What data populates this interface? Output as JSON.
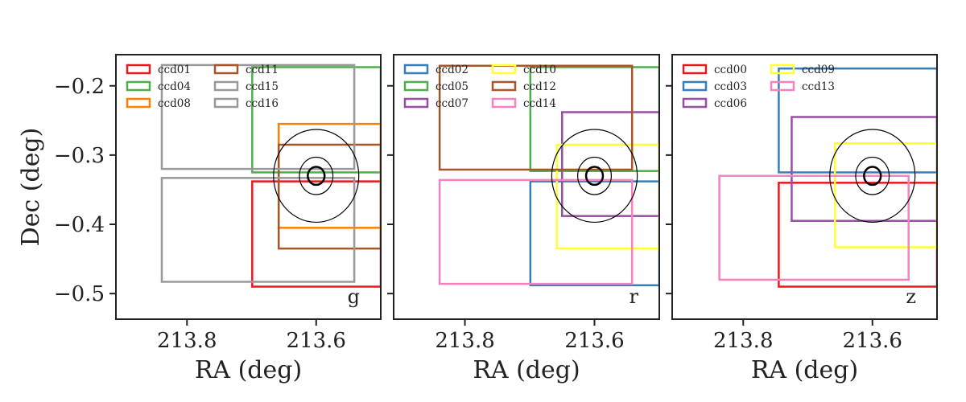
{
  "chart_data": [
    {
      "type": "scatter",
      "panel": "g",
      "band_label": "g",
      "xlabel": "RA (deg)",
      "ylabel": "Dec (deg)",
      "xlim": [
        213.91,
        213.5
      ],
      "ylim": [
        -0.537,
        -0.155
      ],
      "x_ticks": [
        213.8,
        213.6
      ],
      "x_tick_labels": [
        "213.8",
        "213.6"
      ],
      "y_ticks": [
        -0.2,
        -0.3,
        -0.4,
        -0.5
      ],
      "y_tick_labels": [
        "−0.2",
        "−0.3",
        "−0.4",
        "−0.5"
      ],
      "legend_columns": 2,
      "legend_position": "upper-left",
      "ccds": [
        {
          "name": "ccd01",
          "color": "#e41a1c",
          "ra": [
            213.5,
            213.699
          ],
          "dec": [
            -0.49,
            -0.338
          ]
        },
        {
          "name": "ccd04",
          "color": "#4daf4a",
          "ra": [
            213.5,
            213.699
          ],
          "dec": [
            -0.325,
            -0.173
          ]
        },
        {
          "name": "ccd08",
          "color": "#ff7f00",
          "ra": [
            213.5,
            213.658
          ],
          "dec": [
            -0.405,
            -0.255
          ]
        },
        {
          "name": "ccd11",
          "color": "#a65628",
          "ra": [
            213.5,
            213.658
          ],
          "dec": [
            -0.435,
            -0.285
          ]
        },
        {
          "name": "ccd15",
          "color": "#999999",
          "ra": [
            213.541,
            213.839
          ],
          "dec": [
            -0.32,
            -0.17
          ]
        },
        {
          "name": "ccd16",
          "color": "#999999",
          "ra": [
            213.541,
            213.839
          ],
          "dec": [
            -0.483,
            -0.333
          ]
        }
      ],
      "circles": [
        {
          "ra": 213.6,
          "dec": -0.33,
          "r_ra": 0.066,
          "r_dec": 0.067
        },
        {
          "ra": 213.6,
          "dec": -0.33,
          "r_ra": 0.026,
          "r_dec": 0.027
        },
        {
          "ra": 213.6,
          "dec": -0.33,
          "r_ra": 0.013,
          "r_dec": 0.013
        }
      ]
    },
    {
      "type": "scatter",
      "panel": "r",
      "band_label": "r",
      "xlabel": "RA (deg)",
      "ylabel": "",
      "xlim": [
        213.91,
        213.5
      ],
      "ylim": [
        -0.537,
        -0.155
      ],
      "x_ticks": [
        213.8,
        213.6
      ],
      "x_tick_labels": [
        "213.8",
        "213.6"
      ],
      "y_ticks": [
        -0.2,
        -0.3,
        -0.4,
        -0.5
      ],
      "y_tick_labels": [],
      "legend_columns": 2,
      "legend_position": "upper-left",
      "ccds": [
        {
          "name": "ccd02",
          "color": "#377eb8",
          "ra": [
            213.5,
            213.699
          ],
          "dec": [
            -0.488,
            -0.338
          ]
        },
        {
          "name": "ccd05",
          "color": "#4daf4a",
          "ra": [
            213.5,
            213.699
          ],
          "dec": [
            -0.323,
            -0.173
          ]
        },
        {
          "name": "ccd07",
          "color": "#984ea3",
          "ra": [
            213.5,
            213.65
          ],
          "dec": [
            -0.388,
            -0.238
          ]
        },
        {
          "name": "ccd10",
          "color": "#ffff33",
          "ra": [
            213.5,
            213.658
          ],
          "dec": [
            -0.435,
            -0.285
          ]
        },
        {
          "name": "ccd12",
          "color": "#a65628",
          "ra": [
            213.542,
            213.839
          ],
          "dec": [
            -0.321,
            -0.171
          ]
        },
        {
          "name": "ccd14",
          "color": "#f781bf",
          "ra": [
            213.542,
            213.839
          ],
          "dec": [
            -0.486,
            -0.336
          ]
        }
      ],
      "circles": [
        {
          "ra": 213.6,
          "dec": -0.33,
          "r_ra": 0.066,
          "r_dec": 0.067
        },
        {
          "ra": 213.6,
          "dec": -0.33,
          "r_ra": 0.026,
          "r_dec": 0.027
        },
        {
          "ra": 213.6,
          "dec": -0.33,
          "r_ra": 0.013,
          "r_dec": 0.013
        }
      ]
    },
    {
      "type": "scatter",
      "panel": "z",
      "band_label": "z",
      "xlabel": "RA (deg)",
      "ylabel": "",
      "xlim": [
        213.91,
        213.5
      ],
      "ylim": [
        -0.537,
        -0.155
      ],
      "x_ticks": [
        213.8,
        213.6
      ],
      "x_tick_labels": [
        "213.8",
        "213.6"
      ],
      "y_ticks": [
        -0.2,
        -0.3,
        -0.4,
        -0.5
      ],
      "y_tick_labels": [],
      "legend_columns": 2,
      "legend_position": "upper-left",
      "ccds": [
        {
          "name": "ccd00",
          "color": "#e41a1c",
          "ra": [
            213.5,
            213.745
          ],
          "dec": [
            -0.49,
            -0.34
          ]
        },
        {
          "name": "ccd03",
          "color": "#377eb8",
          "ra": [
            213.5,
            213.745
          ],
          "dec": [
            -0.325,
            -0.175
          ]
        },
        {
          "name": "ccd06",
          "color": "#984ea3",
          "ra": [
            213.5,
            213.725
          ],
          "dec": [
            -0.395,
            -0.245
          ]
        },
        {
          "name": "ccd09",
          "color": "#ffff33",
          "ra": [
            213.5,
            213.658
          ],
          "dec": [
            -0.433,
            -0.283
          ]
        },
        {
          "name": "ccd13",
          "color": "#f781bf",
          "ra": [
            213.544,
            213.837
          ],
          "dec": [
            -0.48,
            -0.33
          ]
        }
      ],
      "circles": [
        {
          "ra": 213.6,
          "dec": -0.33,
          "r_ra": 0.066,
          "r_dec": 0.067
        },
        {
          "ra": 213.6,
          "dec": -0.33,
          "r_ra": 0.026,
          "r_dec": 0.027
        },
        {
          "ra": 213.6,
          "dec": -0.33,
          "r_ra": 0.013,
          "r_dec": 0.013
        }
      ]
    }
  ]
}
